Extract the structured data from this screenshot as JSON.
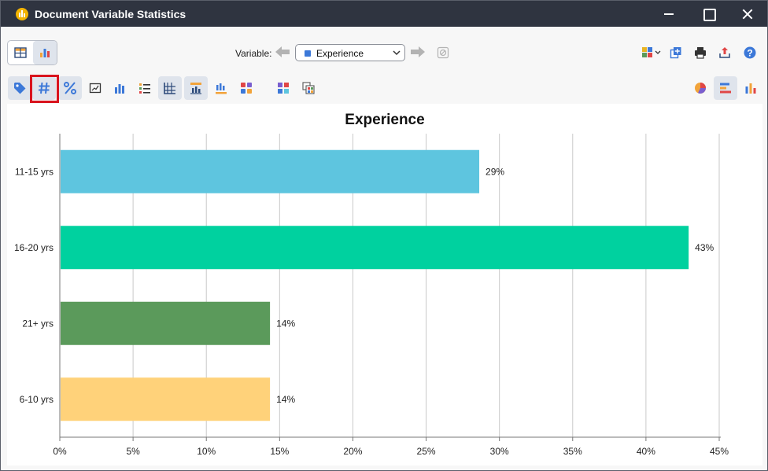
{
  "window": {
    "title": "Document Variable Statistics"
  },
  "toolbar": {
    "variable_label": "Variable:",
    "variable_value": "Experience"
  },
  "icons": {
    "app": "statistics-icon",
    "view_table": "table-view-icon",
    "view_chart": "chart-view-icon",
    "tag": "tag-icon",
    "counts": "hash-icon",
    "percent": "percent-icon",
    "pie": "pie-chart-icon",
    "bar_h": "horizontal-bar-icon",
    "bar_v": "vertical-bar-icon",
    "help": "help-icon"
  },
  "colors": {
    "titlebar": "#2f3440",
    "highlight": "#d9141e",
    "series": [
      "#5ec5df",
      "#00d19f",
      "#5b9a5b",
      "#ffd27a"
    ]
  },
  "chart_data": {
    "type": "bar",
    "orientation": "horizontal",
    "title": "Experience",
    "categories": [
      "11-15 yrs",
      "16-20 yrs",
      "21+ yrs",
      "6-10 yrs"
    ],
    "values": [
      28.57,
      42.86,
      14.29,
      14.29
    ],
    "labels": [
      "29%",
      "43%",
      "14%",
      "14%"
    ],
    "xlim": [
      0,
      45
    ],
    "xticks": [
      "0%",
      "5%",
      "10%",
      "15%",
      "20%",
      "25%",
      "30%",
      "35%",
      "40%",
      "45%"
    ],
    "grid": true,
    "legend": "none"
  }
}
